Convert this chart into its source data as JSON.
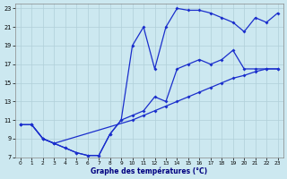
{
  "xlabel": "Graphe des températures (°C)",
  "xlim": [
    -0.5,
    23.5
  ],
  "ylim": [
    7,
    23.5
  ],
  "xticks": [
    0,
    1,
    2,
    3,
    4,
    5,
    6,
    7,
    8,
    9,
    10,
    11,
    12,
    13,
    14,
    15,
    16,
    17,
    18,
    19,
    20,
    21,
    22,
    23
  ],
  "yticks": [
    7,
    9,
    11,
    13,
    15,
    17,
    19,
    21,
    23
  ],
  "background_color": "#cce8f0",
  "grid_color": "#b0cfd8",
  "line_color": "#1a2ecc",
  "line1_x": [
    0,
    1,
    2,
    3,
    4,
    5,
    6,
    7,
    8,
    9,
    10,
    11,
    12,
    13,
    14,
    15,
    16,
    17,
    18,
    19,
    20,
    21,
    22,
    23
  ],
  "line1_y": [
    10.5,
    10.5,
    9.0,
    8.5,
    8.0,
    7.5,
    7.2,
    7.2,
    9.5,
    11.0,
    11.5,
    12.0,
    13.5,
    13.0,
    16.5,
    17.0,
    17.5,
    17.0,
    17.5,
    18.5,
    16.5,
    16.5,
    16.5,
    16.5
  ],
  "line2_x": [
    0,
    1,
    2,
    3,
    4,
    5,
    6,
    7,
    8,
    9,
    10,
    11,
    12,
    13,
    14,
    15,
    16,
    17,
    18,
    19,
    20,
    21,
    22,
    23
  ],
  "line2_y": [
    10.5,
    10.5,
    9.0,
    8.5,
    8.0,
    7.5,
    7.2,
    7.2,
    9.5,
    11.0,
    19.0,
    21.0,
    16.5,
    21.0,
    23.0,
    22.8,
    22.8,
    22.5,
    22.0,
    21.5,
    20.5,
    22.0,
    21.5,
    22.5
  ],
  "line3_x": [
    0,
    1,
    2,
    3,
    10,
    11,
    12,
    13,
    14,
    15,
    16,
    17,
    18,
    19,
    20,
    21,
    22,
    23
  ],
  "line3_y": [
    10.5,
    10.5,
    9.0,
    8.5,
    11.0,
    11.5,
    12.0,
    12.5,
    13.0,
    13.5,
    14.0,
    14.5,
    15.0,
    15.5,
    15.8,
    16.2,
    16.5,
    16.5
  ]
}
